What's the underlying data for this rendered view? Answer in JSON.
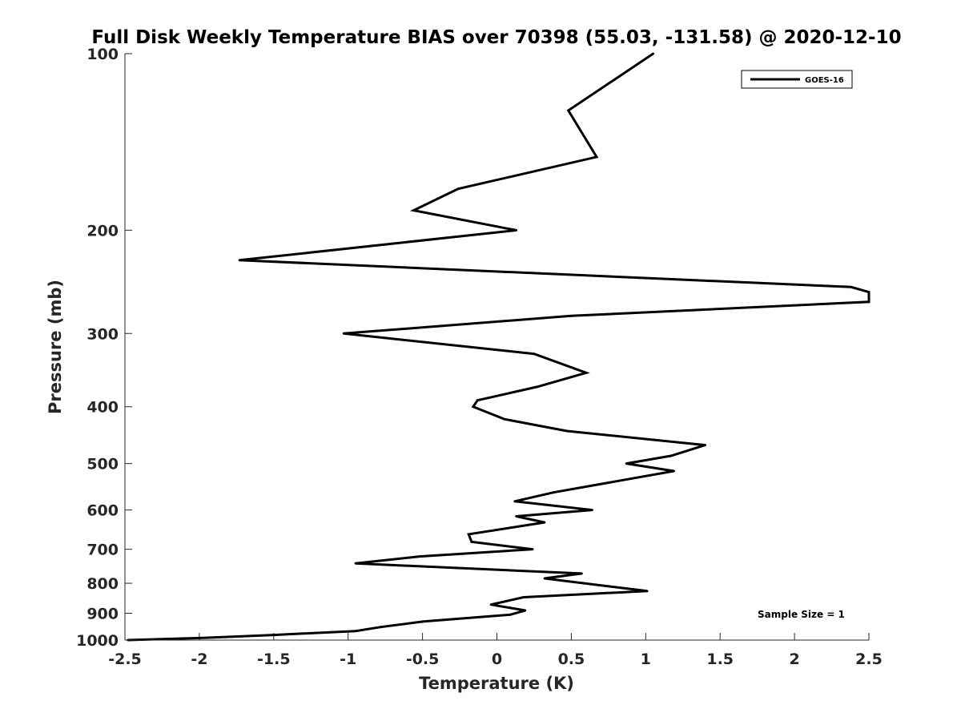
{
  "chart_data": {
    "type": "line",
    "title": "Full Disk Weekly Temperature BIAS over 70398 (55.03, -131.58) @ 2020-12-10",
    "xlabel": "Temperature (K)",
    "ylabel": "Pressure (mb)",
    "xlim": [
      -2.5,
      2.5
    ],
    "ylim": [
      1000,
      100
    ],
    "yscale": "log",
    "xticks": [
      -2.5,
      -2,
      -1.5,
      -1,
      -0.5,
      0,
      0.5,
      1,
      1.5,
      2,
      2.5
    ],
    "xtick_labels": [
      "-2.5",
      "-2",
      "-1.5",
      "-1",
      "-0.5",
      "0",
      "0.5",
      "1",
      "1.5",
      "2",
      "2.5"
    ],
    "yticks": [
      100,
      200,
      300,
      400,
      500,
      600,
      700,
      800,
      900,
      1000
    ],
    "ytick_labels": [
      "100",
      "200",
      "300",
      "400",
      "500",
      "600",
      "700",
      "800",
      "900",
      "1000"
    ],
    "grid": false,
    "legend_position": "top-right",
    "series": [
      {
        "name": "GOES-16",
        "color": "#000000",
        "points": [
          {
            "t": 1.05,
            "p": 100
          },
          {
            "t": 0.48,
            "p": 125
          },
          {
            "t": 0.67,
            "p": 150
          },
          {
            "t": -0.26,
            "p": 170
          },
          {
            "t": -0.56,
            "p": 185
          },
          {
            "t": 0.13,
            "p": 200
          },
          {
            "t": -1.73,
            "p": 225
          },
          {
            "t": 2.38,
            "p": 250
          },
          {
            "t": 2.5,
            "p": 255
          },
          {
            "t": 2.5,
            "p": 265
          },
          {
            "t": 0.5,
            "p": 280
          },
          {
            "t": -1.03,
            "p": 300
          },
          {
            "t": 0.25,
            "p": 325
          },
          {
            "t": 0.6,
            "p": 350
          },
          {
            "t": 0.27,
            "p": 370
          },
          {
            "t": -0.13,
            "p": 390
          },
          {
            "t": -0.16,
            "p": 400
          },
          {
            "t": 0.05,
            "p": 420
          },
          {
            "t": 0.47,
            "p": 440
          },
          {
            "t": 1.4,
            "p": 465
          },
          {
            "t": 1.17,
            "p": 485
          },
          {
            "t": 0.87,
            "p": 500
          },
          {
            "t": 1.19,
            "p": 515
          },
          {
            "t": 0.82,
            "p": 535
          },
          {
            "t": 0.38,
            "p": 560
          },
          {
            "t": 0.12,
            "p": 580
          },
          {
            "t": 0.64,
            "p": 600
          },
          {
            "t": 0.13,
            "p": 615
          },
          {
            "t": 0.32,
            "p": 630
          },
          {
            "t": -0.19,
            "p": 660
          },
          {
            "t": -0.17,
            "p": 680
          },
          {
            "t": 0.24,
            "p": 700
          },
          {
            "t": -0.52,
            "p": 720
          },
          {
            "t": -0.95,
            "p": 740
          },
          {
            "t": 0.57,
            "p": 770
          },
          {
            "t": 0.32,
            "p": 785
          },
          {
            "t": 1.01,
            "p": 825
          },
          {
            "t": 0.18,
            "p": 845
          },
          {
            "t": -0.04,
            "p": 870
          },
          {
            "t": 0.19,
            "p": 890
          },
          {
            "t": 0.09,
            "p": 905
          },
          {
            "t": -0.5,
            "p": 930
          },
          {
            "t": -0.78,
            "p": 950
          },
          {
            "t": -0.95,
            "p": 965
          },
          {
            "t": -1.5,
            "p": 980
          },
          {
            "t": -2.0,
            "p": 992
          },
          {
            "t": -2.48,
            "p": 1000
          }
        ]
      }
    ],
    "annotations": [
      {
        "text": "Sample Size = 1",
        "position": "bottom-right"
      }
    ]
  }
}
